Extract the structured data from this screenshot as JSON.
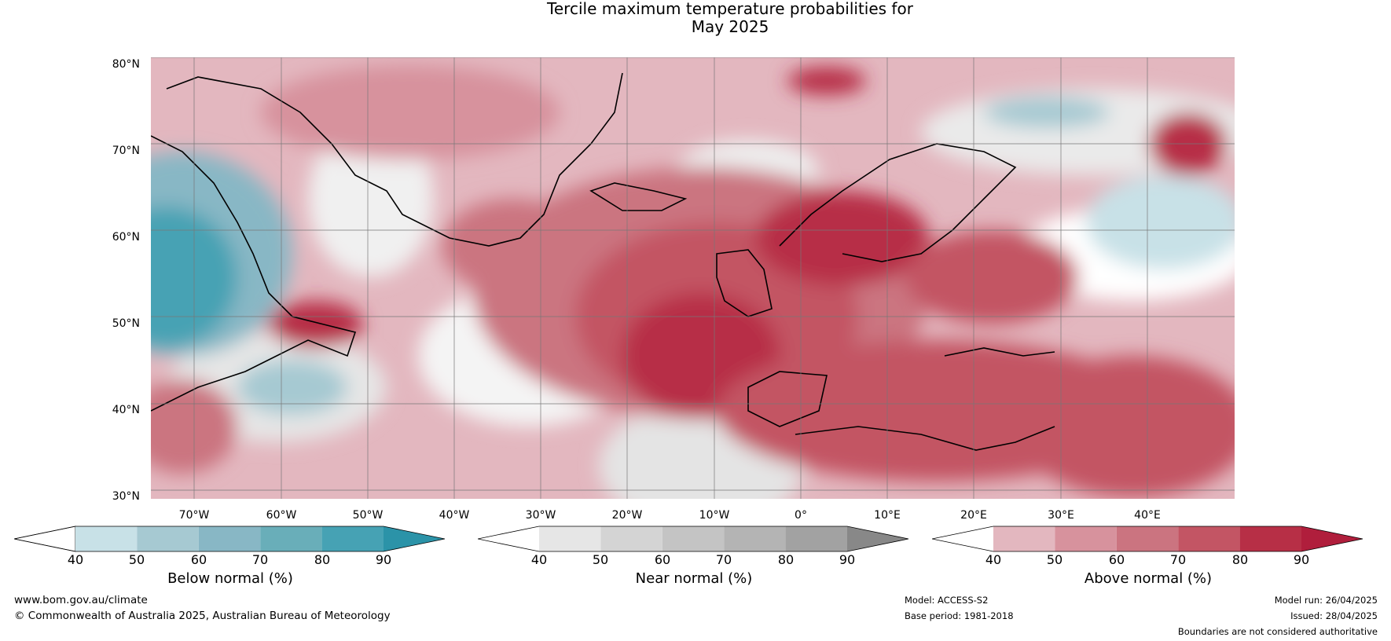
{
  "title": {
    "line1": "Tercile maximum temperature probabilities for",
    "line2": "May 2025"
  },
  "map": {
    "lat_labels": [
      "80°N",
      "70°N",
      "60°N",
      "50°N",
      "40°N",
      "30°N"
    ],
    "lon_labels": [
      "70°W",
      "60°W",
      "50°W",
      "40°W",
      "30°W",
      "20°W",
      "10°W",
      "0°",
      "10°E",
      "20°E",
      "30°E",
      "40°E"
    ],
    "extent": {
      "lon_min": -75,
      "lon_max": 50,
      "lat_min": 30,
      "lat_max": 81
    }
  },
  "legends": {
    "below": {
      "label": "Below normal (%)",
      "ticks": [
        "40",
        "50",
        "60",
        "70",
        "80",
        "90"
      ],
      "colors": [
        "#ffffff",
        "#c8e1e7",
        "#a6c9d2",
        "#88b7c5",
        "#69aeb9",
        "#46a2b4",
        "#2b93a8"
      ]
    },
    "near": {
      "label": "Near normal (%)",
      "ticks": [
        "40",
        "50",
        "60",
        "70",
        "80",
        "90"
      ],
      "colors": [
        "#ffffff",
        "#e6e6e6",
        "#d4d4d4",
        "#c4c4c4",
        "#b4b4b4",
        "#a2a2a2",
        "#888888"
      ]
    },
    "above": {
      "label": "Above normal (%)",
      "ticks": [
        "40",
        "50",
        "60",
        "70",
        "80",
        "90"
      ],
      "colors": [
        "#ffffff",
        "#e3b7bf",
        "#d7929d",
        "#cb7480",
        "#c35564",
        "#b72f46",
        "#b01e3c"
      ]
    }
  },
  "footer": {
    "website": "www.bom.gov.au/climate",
    "copyright": "© Commonwealth of Australia 2025, Australian Bureau of Meteorology",
    "model": "Model: ACCESS-S2",
    "base_period": "Base period: 1981-2018",
    "model_run": "Model run: 26/04/2025",
    "issued": "Issued: 28/04/2025",
    "disclaimer": "Boundaries are not considered authoritative"
  }
}
